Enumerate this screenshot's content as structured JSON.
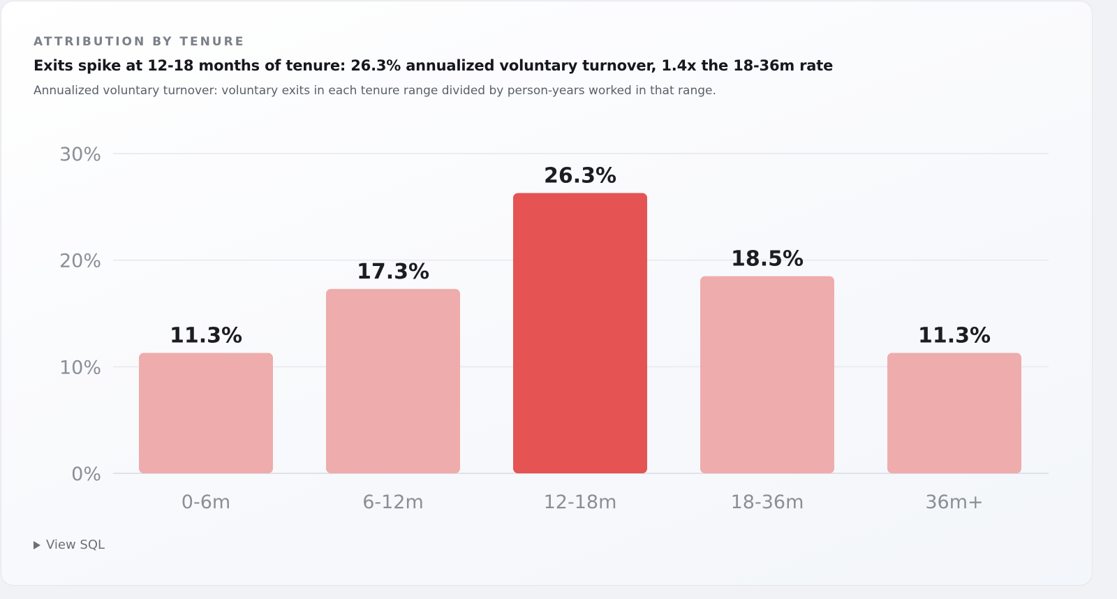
{
  "card": {
    "eyebrow": "ATTRIBUTION BY TENURE",
    "headline": "Exits spike at 12-18 months of tenure: 26.3% annualized voluntary turnover, 1.4x the 18-36m rate",
    "subtitle": "Annualized voluntary turnover: voluntary exits in each tenure range divided by person-years worked in that range.",
    "view_sql_label": "View SQL",
    "view_sql_icon": "caret-right-icon"
  },
  "colors": {
    "highlight": "#e55353",
    "muted": "#eeacac",
    "label_dark": "#1b1d22",
    "axis_text": "#8a8e96",
    "grid": "#e6e8ec"
  },
  "chart_data": {
    "type": "bar",
    "categories": [
      "0-6m",
      "6-12m",
      "12-18m",
      "18-36m",
      "36m+"
    ],
    "values": [
      11.3,
      17.3,
      26.3,
      18.5,
      11.3
    ],
    "value_labels": [
      "11.3%",
      "17.3%",
      "26.3%",
      "18.5%",
      "11.3%"
    ],
    "highlight_index": 2,
    "title": "Exits spike at 12-18 months of tenure: 26.3% annualized voluntary turnover, 1.4x the 18-36m rate",
    "xlabel": "",
    "ylabel": "",
    "ylim": [
      0,
      30
    ],
    "yticks": [
      0,
      10,
      20,
      30
    ],
    "ytick_labels": [
      "0%",
      "10%",
      "20%",
      "30%"
    ],
    "grid": true,
    "legend": "none"
  }
}
